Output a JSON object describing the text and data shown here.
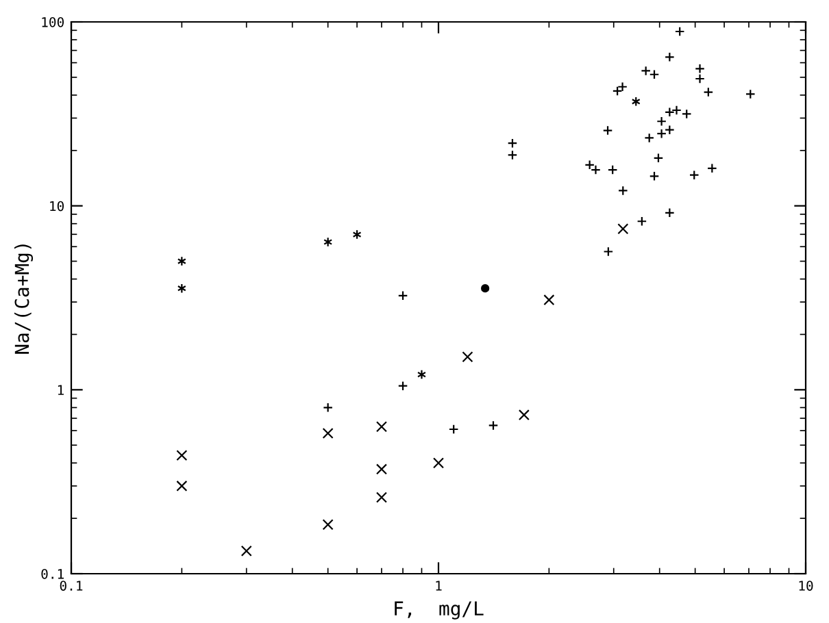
{
  "chart_data": {
    "type": "scatter",
    "xlabel": "F,  mg/L",
    "ylabel": "Na/(Ca+Mg)",
    "log": "xy",
    "xlim": [
      0.1,
      10
    ],
    "ylim": [
      0.1,
      100
    ],
    "xticks": [
      0.1,
      1,
      10
    ],
    "yticks": [
      0.1,
      1,
      10,
      100
    ],
    "grid": false,
    "legend": false,
    "series": [
      {
        "marker": "plus",
        "color": "#000000",
        "x": [
          0.8,
          0.8,
          0.5,
          1.1,
          1.41,
          1.59,
          1.59,
          2.9,
          2.89,
          2.58,
          2.68,
          2.98,
          3.18,
          3.07,
          3.17,
          3.58,
          3.67,
          3.87,
          3.75,
          3.87,
          3.97,
          4.05,
          4.05,
          4.26,
          4.26,
          4.45,
          4.74,
          4.26,
          4.26,
          4.54,
          5.15,
          5.15,
          5.43,
          4.97,
          5.56,
          7.07
        ],
        "values": [
          3.25,
          1.05,
          0.8,
          0.61,
          0.64,
          21.9,
          18.9,
          5.64,
          25.7,
          16.7,
          15.7,
          15.7,
          12.1,
          42.1,
          44.4,
          8.24,
          54.2,
          51.8,
          23.4,
          14.5,
          18.2,
          28.8,
          24.7,
          25.9,
          32.3,
          33.1,
          31.6,
          64.4,
          9.17,
          88.7,
          55.7,
          49.1,
          41.5,
          14.7,
          16.0,
          40.5
        ]
      },
      {
        "marker": "x",
        "color": "#000000",
        "x": [
          0.2,
          0.2,
          0.3,
          0.5,
          0.5,
          0.7,
          0.7,
          0.7,
          1.0,
          1.2,
          1.71,
          2.0,
          3.18
        ],
        "values": [
          0.3,
          0.44,
          0.133,
          0.58,
          0.185,
          0.63,
          0.37,
          0.26,
          0.4,
          1.51,
          0.73,
          3.08,
          7.5
        ]
      },
      {
        "marker": "cross",
        "color": "#000000",
        "x": [
          0.2,
          0.2,
          0.5,
          0.6,
          0.9,
          3.45
        ],
        "values": [
          5.0,
          3.56,
          6.36,
          6.98,
          1.21,
          36.9
        ]
      },
      {
        "marker": "circle",
        "color": "#000000",
        "x": [
          1.34
        ],
        "values": [
          3.56
        ]
      }
    ]
  }
}
